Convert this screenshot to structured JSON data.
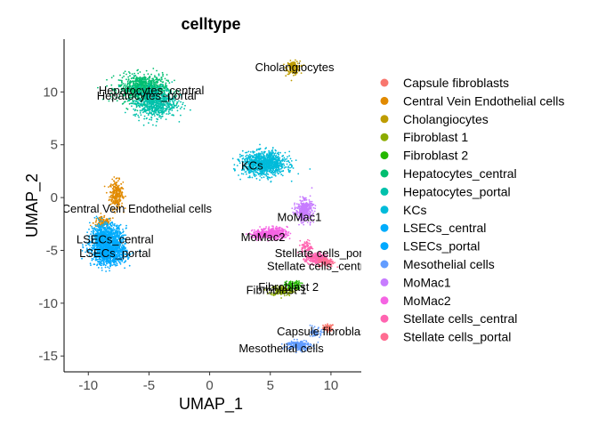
{
  "chart_data": {
    "type": "scatter",
    "title": "celltype",
    "xlabel": "UMAP_1",
    "ylabel": "UMAP_2",
    "xlim": [
      -12,
      12.5
    ],
    "ylim": [
      -16.5,
      15
    ],
    "xticks": [
      -10,
      -5,
      0,
      5,
      10
    ],
    "yticks": [
      10,
      5,
      0,
      -5,
      -10,
      -15
    ],
    "xtick_labels": [
      "-10",
      "-5",
      "0",
      "5",
      "10"
    ],
    "ytick_labels": [
      "10",
      "5",
      "0",
      "-5",
      "-10",
      "-15"
    ],
    "grid": false,
    "legend_position": "right",
    "series": [
      {
        "name": "Capsule fibroblasts",
        "color": "#F8766D",
        "clusters": [
          {
            "x": 9.8,
            "y": -12.3,
            "sx": 0.4,
            "sy": 0.3,
            "n": 60
          }
        ]
      },
      {
        "name": "Central Vein Endothelial cells",
        "color": "#E18A00",
        "clusters": [
          {
            "x": -7.7,
            "y": 0.3,
            "sx": 0.5,
            "sy": 1.2,
            "n": 260
          },
          {
            "x": -8.8,
            "y": -2.4,
            "sx": 0.7,
            "sy": 0.5,
            "n": 120
          }
        ]
      },
      {
        "name": "Cholangiocytes",
        "color": "#BE9C00",
        "clusters": [
          {
            "x": 6.9,
            "y": 12.3,
            "sx": 0.5,
            "sy": 0.55,
            "n": 160
          }
        ]
      },
      {
        "name": "Fibroblast 1",
        "color": "#8CAB00",
        "clusters": [
          {
            "x": 6.0,
            "y": -8.8,
            "sx": 0.9,
            "sy": 0.45,
            "n": 180
          }
        ]
      },
      {
        "name": "Fibroblast 2",
        "color": "#24B700",
        "clusters": [
          {
            "x": 6.9,
            "y": -8.3,
            "sx": 0.6,
            "sy": 0.35,
            "n": 110
          }
        ]
      },
      {
        "name": "Hepatocytes_central",
        "color": "#00BE70",
        "clusters": [
          {
            "x": -5.5,
            "y": 10.3,
            "sx": 1.8,
            "sy": 1.2,
            "n": 900
          }
        ]
      },
      {
        "name": "Hepatocytes_portal",
        "color": "#00C1AB",
        "clusters": [
          {
            "x": -4.5,
            "y": 9.0,
            "sx": 1.6,
            "sy": 1.3,
            "n": 700
          }
        ]
      },
      {
        "name": "KCs",
        "color": "#00BBDA",
        "clusters": [
          {
            "x": 4.5,
            "y": 3.2,
            "sx": 1.6,
            "sy": 1.0,
            "n": 1100
          }
        ]
      },
      {
        "name": "LSECs_central",
        "color": "#00ACFC",
        "clusters": [
          {
            "x": -8.5,
            "y": -3.8,
            "sx": 1.2,
            "sy": 1.2,
            "n": 900
          }
        ]
      },
      {
        "name": "LSECs_portal",
        "color": "#00A9FF",
        "clusters": [
          {
            "x": -8.3,
            "y": -5.2,
            "sx": 1.3,
            "sy": 1.1,
            "n": 900
          }
        ]
      },
      {
        "name": "Mesothelial cells",
        "color": "#619CFF",
        "clusters": [
          {
            "x": 7.3,
            "y": -14.0,
            "sx": 0.9,
            "sy": 0.45,
            "n": 220
          },
          {
            "x": 8.8,
            "y": -12.8,
            "sx": 0.4,
            "sy": 0.4,
            "n": 60
          }
        ]
      },
      {
        "name": "MoMac1",
        "color": "#C77CFF",
        "clusters": [
          {
            "x": 7.8,
            "y": -1.2,
            "sx": 0.6,
            "sy": 0.9,
            "n": 400
          }
        ]
      },
      {
        "name": "MoMac2",
        "color": "#F564E3",
        "clusters": [
          {
            "x": 5.3,
            "y": -3.4,
            "sx": 1.0,
            "sy": 0.5,
            "n": 400
          },
          {
            "x": 4.0,
            "y": -3.5,
            "sx": 0.6,
            "sy": 0.4,
            "n": 120
          }
        ]
      },
      {
        "name": "Stellate cells_central",
        "color": "#FF64B0",
        "clusters": [
          {
            "x": 8.8,
            "y": -5.8,
            "sx": 0.8,
            "sy": 0.5,
            "n": 260
          },
          {
            "x": 8.0,
            "y": -4.7,
            "sx": 0.4,
            "sy": 0.6,
            "n": 80
          }
        ]
      },
      {
        "name": "Stellate cells_portal",
        "color": "#FF6C91",
        "clusters": [
          {
            "x": 9.6,
            "y": -6.1,
            "sx": 0.6,
            "sy": 0.4,
            "n": 120
          }
        ]
      }
    ],
    "cluster_labels": [
      {
        "text": "Cholangiocytes",
        "x": 7.0,
        "y": 12.3
      },
      {
        "text": "Hepatocytes_central",
        "x": -4.8,
        "y": 10.1
      },
      {
        "text": "Hepatocytes_portal",
        "x": -5.2,
        "y": 9.6
      },
      {
        "text": "KCs",
        "x": 3.5,
        "y": 3.0
      },
      {
        "text": "Central Vein Endothelial cells",
        "x": -6.0,
        "y": -1.1
      },
      {
        "text": "MoMac1",
        "x": 7.4,
        "y": -1.9
      },
      {
        "text": "MoMac2",
        "x": 4.4,
        "y": -3.8
      },
      {
        "text": "LSECs_central",
        "x": -7.8,
        "y": -4.0
      },
      {
        "text": "LSECs_portal",
        "x": -7.8,
        "y": -5.3
      },
      {
        "text": "Stellate cells_portal",
        "x": 9.5,
        "y": -5.3
      },
      {
        "text": "Stellate cells_central",
        "x": 9.1,
        "y": -6.5
      },
      {
        "text": "Fibroblast 2",
        "x": 6.5,
        "y": -8.5
      },
      {
        "text": "Fibroblast 1",
        "x": 5.5,
        "y": -8.8
      },
      {
        "text": "Capsule fibroblasts",
        "x": 9.6,
        "y": -12.7
      },
      {
        "text": "Mesothelial cells",
        "x": 5.9,
        "y": -14.3
      }
    ]
  }
}
